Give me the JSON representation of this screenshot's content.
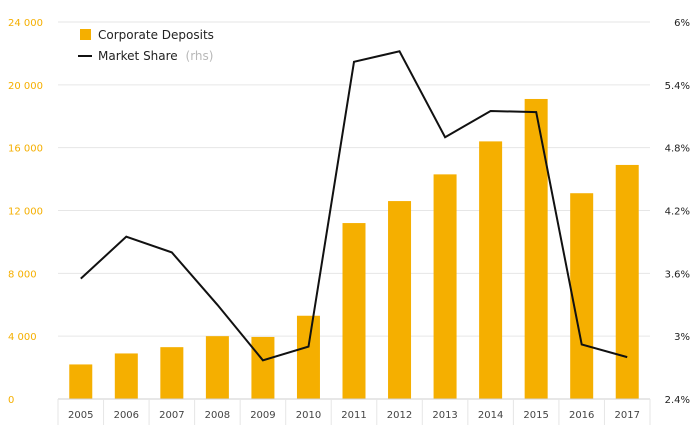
{
  "colors": {
    "bar": "#f5af00",
    "line": "#111111",
    "left_axis_text": "#f5af00",
    "right_axis_text": "#222222",
    "grid": "#e6e6e6",
    "axis": "#cfcfcf"
  },
  "legend": {
    "bars_label": "Corporate Deposits",
    "line_label": "Market Share",
    "line_suffix": "(rhs)"
  },
  "chart_data": {
    "type": "bar",
    "categories": [
      "2005",
      "2006",
      "2007",
      "2008",
      "2009",
      "2010",
      "2011",
      "2012",
      "2013",
      "2014",
      "2015",
      "2016",
      "2017"
    ],
    "series": [
      {
        "name": "Corporate Deposits",
        "type": "bar",
        "axis": "left",
        "values": [
          2200,
          2900,
          3300,
          4000,
          3950,
          5300,
          11200,
          12600,
          14300,
          16400,
          19100,
          13100,
          14900
        ]
      },
      {
        "name": "Market Share (rhs)",
        "type": "line",
        "axis": "right",
        "values": [
          3.55,
          3.95,
          3.8,
          3.3,
          2.77,
          2.9,
          5.62,
          5.72,
          4.9,
          5.15,
          5.14,
          2.92,
          2.8
        ]
      }
    ],
    "y_left": {
      "ylim": [
        0,
        24000
      ],
      "ticks": [
        0,
        4000,
        8000,
        12000,
        16000,
        20000,
        24000
      ],
      "tick_labels": [
        "0",
        "4 000",
        "8 000",
        "12 000",
        "16 000",
        "20 000",
        "24 000"
      ]
    },
    "y_right": {
      "ylim": [
        2.4,
        6.0
      ],
      "ticks": [
        2.4,
        3.0,
        3.6,
        4.2,
        4.8,
        5.4,
        6.0
      ],
      "tick_labels": [
        "2.4%",
        "3%",
        "3.6%",
        "4.2%",
        "4.8%",
        "5.4%",
        "6%"
      ]
    },
    "grid": true,
    "legend_position": "top-left"
  }
}
